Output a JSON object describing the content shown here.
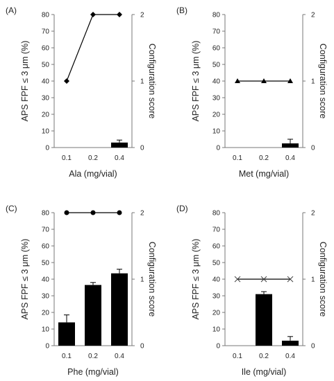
{
  "chart_data": [
    {
      "type": "bar",
      "panel_label": "(A)",
      "categories": [
        "0.1",
        "0.2",
        "0.4"
      ],
      "xlabel": "Ala (mg/vial)",
      "ylabel": "APS FPF ≤ 3 μm (%)",
      "y2label": "Configuration score",
      "ylim": [
        0,
        80
      ],
      "y2lim": [
        0,
        2
      ],
      "yticks": [
        "0",
        "10",
        "20",
        "30",
        "40",
        "50",
        "60",
        "70",
        "80"
      ],
      "y2ticks": [
        "0",
        "1",
        "2"
      ],
      "bars": {
        "values": [
          null,
          null,
          3
        ],
        "errors": [
          null,
          null,
          1.5
        ]
      },
      "score_line": {
        "marker": "diamond",
        "values": [
          1,
          2,
          2
        ]
      }
    },
    {
      "type": "bar",
      "panel_label": "(B)",
      "categories": [
        "0.1",
        "0.2",
        "0.4"
      ],
      "xlabel": "Met (mg/vial)",
      "ylabel": "APS FPF ≤ 3 μm (%)",
      "y2label": "Configuration score",
      "ylim": [
        0,
        80
      ],
      "y2lim": [
        0,
        2
      ],
      "yticks": [
        "0",
        "10",
        "20",
        "30",
        "40",
        "50",
        "60",
        "70",
        "80"
      ],
      "y2ticks": [
        "0",
        "1",
        "2"
      ],
      "bars": {
        "values": [
          null,
          null,
          2.5
        ],
        "errors": [
          null,
          null,
          2.5
        ]
      },
      "score_line": {
        "marker": "triangle",
        "values": [
          1,
          1,
          1
        ]
      }
    },
    {
      "type": "bar",
      "panel_label": "(C)",
      "categories": [
        "0.1",
        "0.2",
        "0.4"
      ],
      "xlabel": "Phe (mg/vial)",
      "ylabel": "APS FPF ≤ 3 μm (%)",
      "y2label": "Configuration score",
      "ylim": [
        0,
        80
      ],
      "y2lim": [
        0,
        2
      ],
      "yticks": [
        "0",
        "10",
        "20",
        "30",
        "40",
        "50",
        "60",
        "70",
        "80"
      ],
      "y2ticks": [
        "0",
        "1",
        "2"
      ],
      "bars": {
        "values": [
          14,
          36.5,
          43.5
        ],
        "errors": [
          4.5,
          1.5,
          2.5
        ]
      },
      "score_line": {
        "marker": "circle",
        "values": [
          2,
          2,
          2
        ]
      }
    },
    {
      "type": "bar",
      "panel_label": "(D)",
      "categories": [
        "0.1",
        "0.2",
        "0.4"
      ],
      "xlabel": "Ile (mg/vial)",
      "ylabel": "APS FPF ≤ 3 μm (%)",
      "y2label": "Configuration score",
      "ylim": [
        0,
        80
      ],
      "y2lim": [
        0,
        2
      ],
      "yticks": [
        "0",
        "10",
        "20",
        "30",
        "40",
        "50",
        "60",
        "70",
        "80"
      ],
      "y2ticks": [
        "0",
        "1",
        "2"
      ],
      "bars": {
        "values": [
          null,
          31,
          3
        ],
        "errors": [
          null,
          1.5,
          2.5
        ]
      },
      "score_line": {
        "marker": "cross",
        "values": [
          1,
          1,
          1
        ]
      }
    }
  ]
}
